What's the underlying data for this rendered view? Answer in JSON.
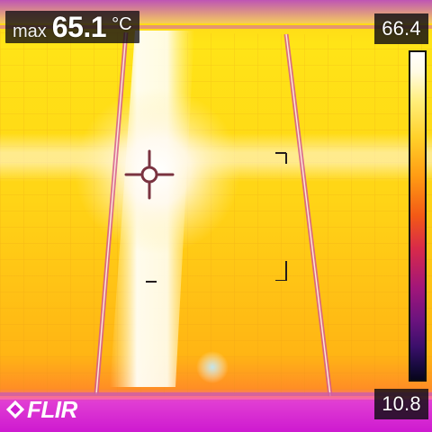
{
  "readout": {
    "max_label": "max",
    "max_value": "65.1",
    "unit": "°C"
  },
  "scale": {
    "top": "66.4",
    "bottom": "10.8",
    "palette": "iron"
  },
  "logo": {
    "text": "FLIR",
    "icon": "flir-diamond-logo"
  },
  "colors": {
    "hotspot_white": "#ffffff",
    "hot_yellow": "#ffe600",
    "warm_orange": "#ff9a14",
    "cool_magenta": "#d01ad0",
    "crosshair": "#7a3340"
  },
  "scene": {
    "type": "thermal image of solar panels",
    "panels": 3
  }
}
